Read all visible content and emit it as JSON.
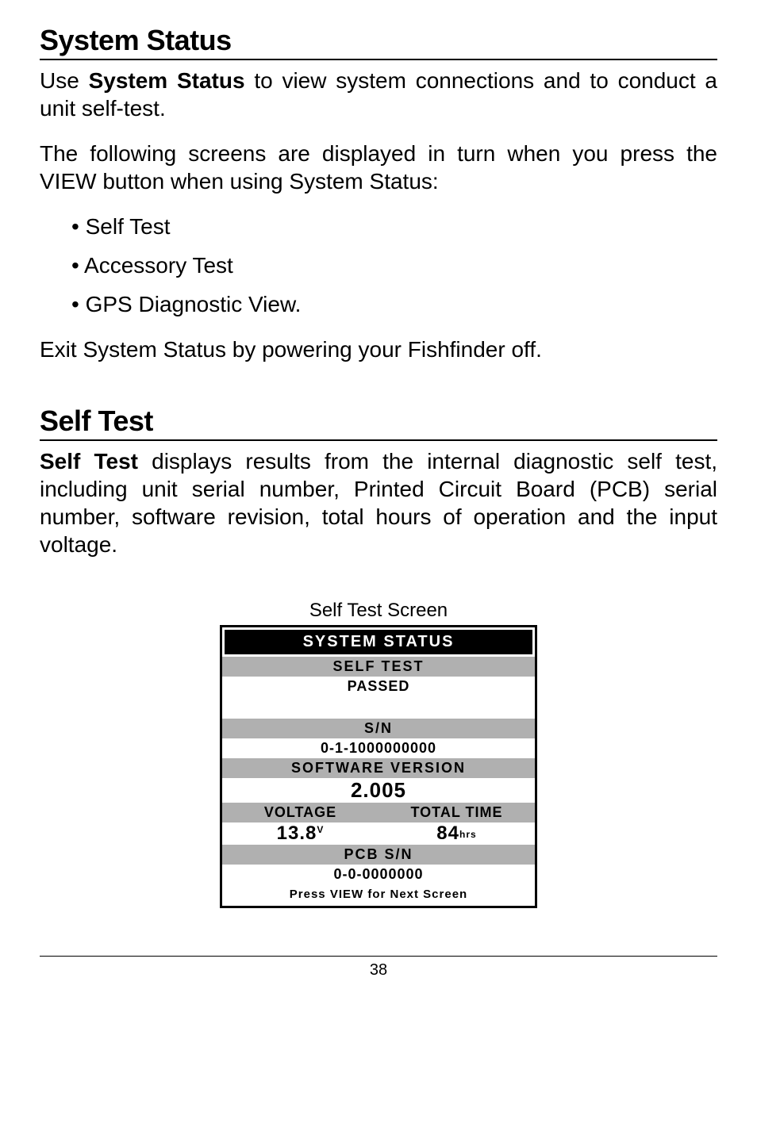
{
  "section1": {
    "title": "System Status",
    "intro_prefix": "Use ",
    "intro_bold": "System Status",
    "intro_suffix": " to view system connections and to conduct a unit self-test.",
    "para2": "The following screens are displayed in turn when you press the VIEW button when using System Status:",
    "bullets": [
      "Self Test",
      "Accessory Test",
      "GPS Diagnostic View."
    ],
    "para3": "Exit System Status by powering your Fishfinder off."
  },
  "section2": {
    "title": "Self Test",
    "intro_bold": "Self Test",
    "intro_suffix": " displays results from the internal diagnostic self test, including unit serial number, Printed Circuit Board (PCB) serial number, software revision, total hours of operation and the input voltage."
  },
  "figure": {
    "caption": "Self Test Screen",
    "lcd": {
      "title": "SYSTEM STATUS",
      "self_test_label": "SELF TEST",
      "self_test_result": "PASSED",
      "sn_label": "S/N",
      "sn_value": "0-1-1000000000",
      "sw_label": "SOFTWARE VERSION",
      "sw_value": "2.005",
      "voltage_label": "VOLTAGE",
      "voltage_value": "13.8",
      "voltage_unit": "V",
      "time_label": "TOTAL TIME",
      "time_value": "84",
      "time_unit": "hrs",
      "pcb_label": "PCB S/N",
      "pcb_value": "0-0-0000000",
      "footer": "Press VIEW for Next Screen",
      "colors": {
        "header_bg": "#b0b0b0",
        "title_bg": "#000000",
        "title_fg": "#ffffff",
        "border": "#000000"
      }
    }
  },
  "page_number": "38"
}
